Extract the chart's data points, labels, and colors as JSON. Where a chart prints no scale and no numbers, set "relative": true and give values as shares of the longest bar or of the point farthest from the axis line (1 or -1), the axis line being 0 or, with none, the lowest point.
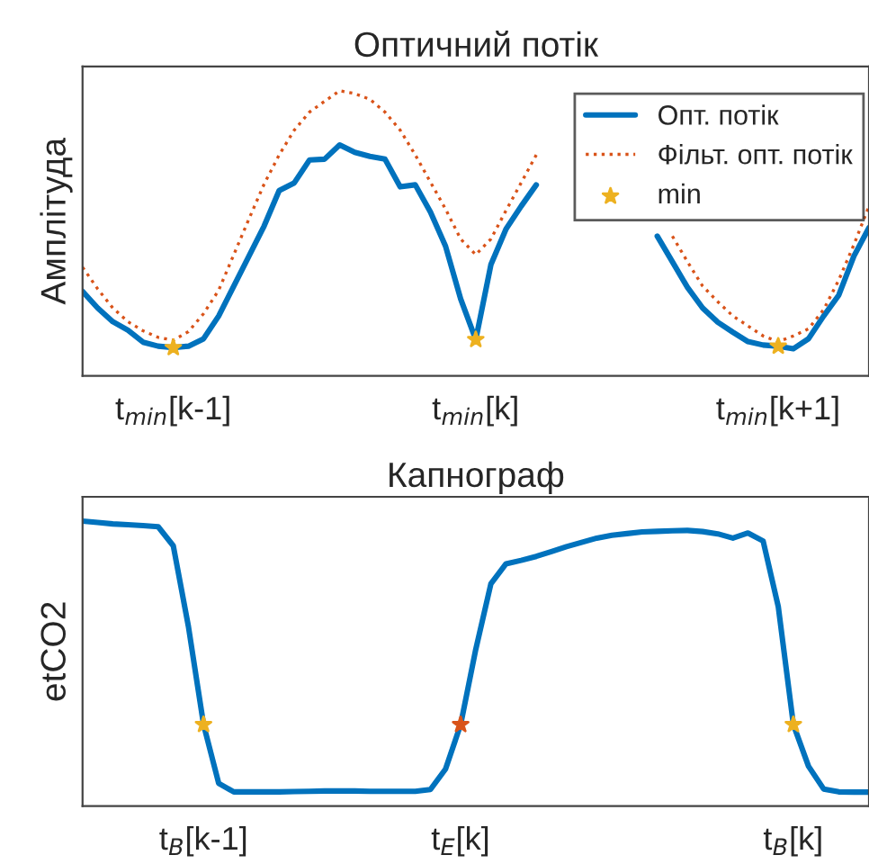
{
  "chart_data": [
    {
      "type": "line",
      "title": "Оптичний потік",
      "ylabel": "Амплітуда",
      "relative": true,
      "legend": "top right",
      "grid": false,
      "categories": [
        null,
        null,
        null,
        null,
        null,
        null,
        "t$_{min}$[k-1]",
        null,
        null,
        null,
        null,
        null,
        null,
        null,
        null,
        null,
        null,
        null,
        null,
        null,
        null,
        null,
        null,
        null,
        null,
        null,
        "t$_{min}$[k]",
        null,
        null,
        null,
        null,
        null,
        null,
        null,
        null,
        null,
        null,
        null,
        null,
        null,
        null,
        null,
        null,
        null,
        null,
        null,
        "t$_{min}$[k+1]",
        null,
        null,
        null,
        null,
        null,
        null
      ],
      "series": [
        {
          "name": "Опт. потік",
          "color": "#0072bd",
          "line_style": "solid",
          "marker": "none",
          "values": [
            0.296,
            0.238,
            0.19,
            0.16,
            0.118,
            0.104,
            0.099,
            0.104,
            0.13,
            0.21,
            0.315,
            0.42,
            0.525,
            0.65,
            0.677,
            0.757,
            0.76,
            0.81,
            0.784,
            0.77,
            0.76,
            0.663,
            0.67,
            0.575,
            0.455,
            0.27,
            0.127,
            0.39,
            0.515,
            0.595,
            0.67,
            null,
            null,
            null,
            null,
            null,
            null,
            null,
            0.49,
            0.4,
            0.31,
            0.238,
            0.188,
            0.153,
            0.12,
            0.108,
            0.104,
            0.095,
            0.13,
            0.21,
            0.283,
            0.42,
            0.52
          ]
        },
        {
          "name": "Фільт. опт. потік",
          "color": "#d95319",
          "line_style": "dotted",
          "marker": "none",
          "values": [
            0.381,
            0.305,
            0.238,
            0.19,
            0.158,
            0.135,
            0.125,
            0.155,
            0.218,
            0.3,
            0.425,
            0.55,
            0.672,
            0.775,
            0.862,
            0.925,
            0.963,
            1.0,
            0.99,
            0.97,
            0.925,
            0.862,
            0.775,
            0.68,
            0.585,
            0.48,
            0.425,
            0.48,
            0.58,
            0.677,
            0.775,
            null,
            null,
            null,
            null,
            null,
            null,
            null,
            null,
            0.49,
            0.4,
            0.315,
            0.26,
            0.21,
            0.175,
            0.14,
            0.12,
            0.14,
            0.165,
            0.232,
            0.336,
            0.46,
            0.595
          ]
        },
        {
          "name": "min",
          "type": "scatter",
          "color": "#edb120",
          "marker": "star",
          "values": [
            null,
            null,
            null,
            null,
            null,
            null,
            0.099,
            null,
            null,
            null,
            null,
            null,
            null,
            null,
            null,
            null,
            null,
            null,
            null,
            null,
            null,
            null,
            null,
            null,
            null,
            null,
            0.127,
            null,
            null,
            null,
            null,
            null,
            null,
            null,
            null,
            null,
            null,
            null,
            null,
            null,
            null,
            null,
            null,
            null,
            null,
            null,
            0.104,
            null,
            null,
            null,
            null,
            null,
            null
          ]
        }
      ]
    },
    {
      "type": "line",
      "title": "Капнограф",
      "ylabel": "etCO2",
      "relative": true,
      "grid": false,
      "categories": [
        null,
        null,
        null,
        null,
        null,
        null,
        null,
        null,
        "t$_{B}$[k-1]",
        null,
        null,
        null,
        null,
        null,
        null,
        null,
        null,
        null,
        null,
        null,
        null,
        null,
        null,
        null,
        null,
        "t$_{E}$[k]",
        null,
        null,
        null,
        null,
        null,
        null,
        null,
        null,
        null,
        null,
        null,
        null,
        null,
        null,
        null,
        null,
        null,
        null,
        null,
        null,
        null,
        "t$_{B}$[k]",
        null,
        null,
        null,
        null,
        null
      ],
      "series": [
        {
          "color": "#0072bd",
          "line_style": "solid",
          "marker": "none",
          "values": [
            1.0,
            0.995,
            0.99,
            0.987,
            0.984,
            0.98,
            0.913,
            0.63,
            0.286,
            0.08,
            0.05,
            0.05,
            0.05,
            0.05,
            0.051,
            0.052,
            0.053,
            0.053,
            0.053,
            0.052,
            0.052,
            0.052,
            0.052,
            0.058,
            0.13,
            0.286,
            0.55,
            0.78,
            0.85,
            0.862,
            0.876,
            0.893,
            0.91,
            0.925,
            0.94,
            0.95,
            0.956,
            0.962,
            0.964,
            0.966,
            0.967,
            0.963,
            0.955,
            0.94,
            0.958,
            0.93,
            0.7,
            0.286,
            0.14,
            0.06,
            0.05,
            0.049,
            0.049
          ]
        },
        {
          "type": "scatter",
          "color": "#edb120",
          "marker": "star",
          "values": [
            null,
            null,
            null,
            null,
            null,
            null,
            null,
            null,
            0.286,
            null,
            null,
            null,
            null,
            null,
            null,
            null,
            null,
            null,
            null,
            null,
            null,
            null,
            null,
            null,
            null,
            null,
            null,
            null,
            null,
            null,
            null,
            null,
            null,
            null,
            null,
            null,
            null,
            null,
            null,
            null,
            null,
            null,
            null,
            null,
            null,
            null,
            null,
            0.286,
            null,
            null,
            null,
            null,
            null
          ]
        },
        {
          "type": "scatter",
          "color": "#d95319",
          "marker": "star",
          "values": [
            null,
            null,
            null,
            null,
            null,
            null,
            null,
            null,
            null,
            null,
            null,
            null,
            null,
            null,
            null,
            null,
            null,
            null,
            null,
            null,
            null,
            null,
            null,
            null,
            null,
            0.286,
            null,
            null,
            null,
            null,
            null,
            null,
            null,
            null,
            null,
            null,
            null,
            null,
            null,
            null,
            null,
            null,
            null,
            null,
            null,
            null,
            null,
            null,
            null,
            null,
            null,
            null,
            null
          ]
        }
      ]
    }
  ]
}
